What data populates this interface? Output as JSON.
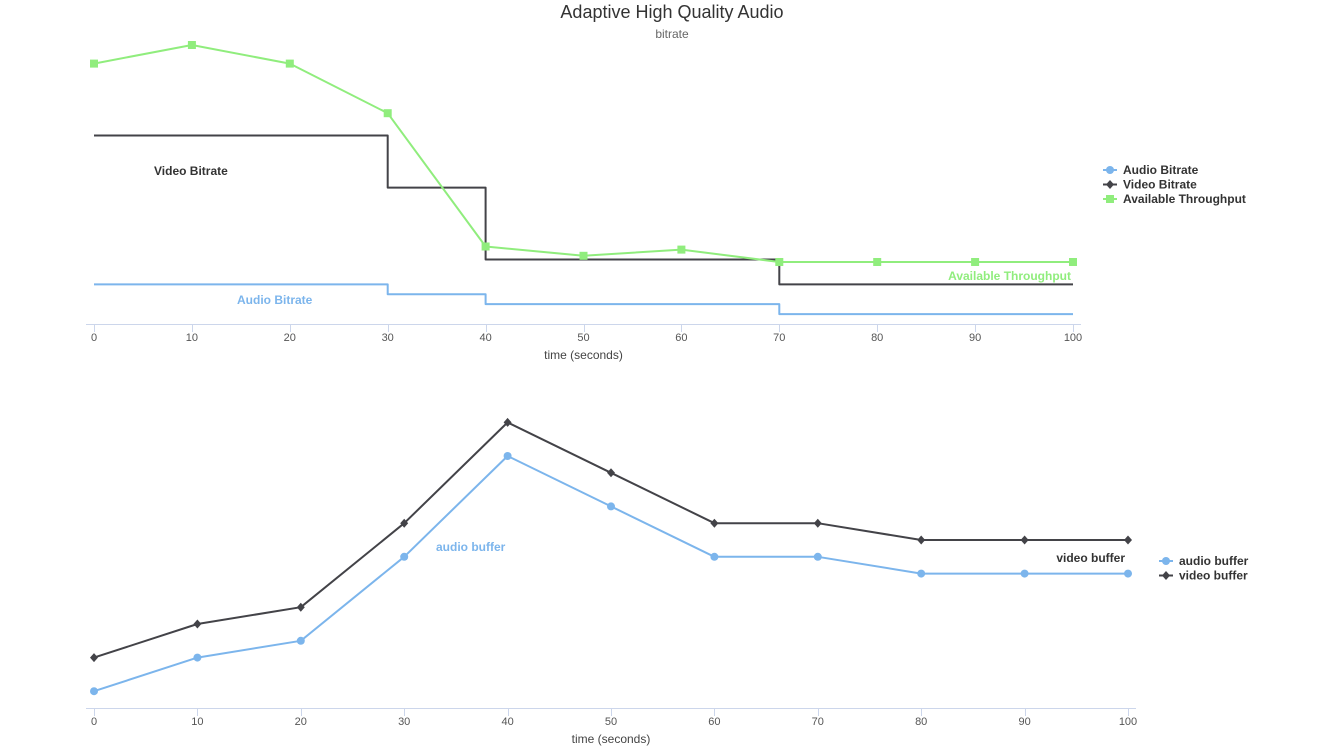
{
  "title": "Adaptive High Quality Audio",
  "subtitle": "bitrate",
  "chart_data": [
    {
      "type": "line",
      "xlabel": "time (seconds)",
      "ylabel": "",
      "xlim": [
        0,
        100
      ],
      "x_ticks": [
        0,
        10,
        20,
        30,
        40,
        50,
        60,
        70,
        80,
        90,
        100
      ],
      "ylim": [
        0,
        1000
      ],
      "grid": false,
      "legend_position": "right",
      "series": [
        {
          "name": "Audio Bitrate",
          "label": "Audio Bitrate",
          "color": "#7cb5ec",
          "marker": "circle",
          "step": true,
          "x": [
            0,
            30,
            40,
            70,
            100
          ],
          "y": [
            128,
            96,
            64,
            32,
            32
          ]
        },
        {
          "name": "Video Bitrate",
          "label": "Video Bitrate",
          "color": "#434348",
          "marker": "diamond",
          "step": true,
          "x": [
            0,
            30,
            40,
            70,
            100
          ],
          "y": [
            608,
            440,
            208,
            128,
            128
          ]
        },
        {
          "name": "Available Throughput",
          "label": "Available Throughput",
          "color": "#90ed7d",
          "marker": "square",
          "step": false,
          "x": [
            0,
            10,
            20,
            30,
            40,
            50,
            60,
            70,
            80,
            90,
            100
          ],
          "y": [
            840,
            900,
            840,
            680,
            250,
            220,
            240,
            200,
            200,
            200,
            200
          ]
        }
      ]
    },
    {
      "type": "line",
      "xlabel": "time (seconds)",
      "ylabel": "",
      "xlim": [
        0,
        100
      ],
      "x_ticks": [
        0,
        10,
        20,
        30,
        40,
        50,
        60,
        70,
        80,
        90,
        100
      ],
      "ylim": [
        0,
        35
      ],
      "grid": false,
      "legend_position": "right",
      "series": [
        {
          "name": "audio buffer",
          "label": "audio buffer",
          "color": "#7cb5ec",
          "marker": "circle",
          "x": [
            0,
            10,
            20,
            30,
            40,
            50,
            60,
            70,
            80,
            90,
            100
          ],
          "y": [
            2,
            6,
            8,
            18,
            30,
            24,
            18,
            18,
            16,
            16,
            16
          ]
        },
        {
          "name": "video buffer",
          "label": "video buffer",
          "color": "#434348",
          "marker": "diamond",
          "x": [
            0,
            10,
            20,
            30,
            40,
            50,
            60,
            70,
            80,
            90,
            100
          ],
          "y": [
            6,
            10,
            12,
            22,
            34,
            28,
            22,
            22,
            20,
            20,
            20
          ]
        }
      ]
    }
  ]
}
